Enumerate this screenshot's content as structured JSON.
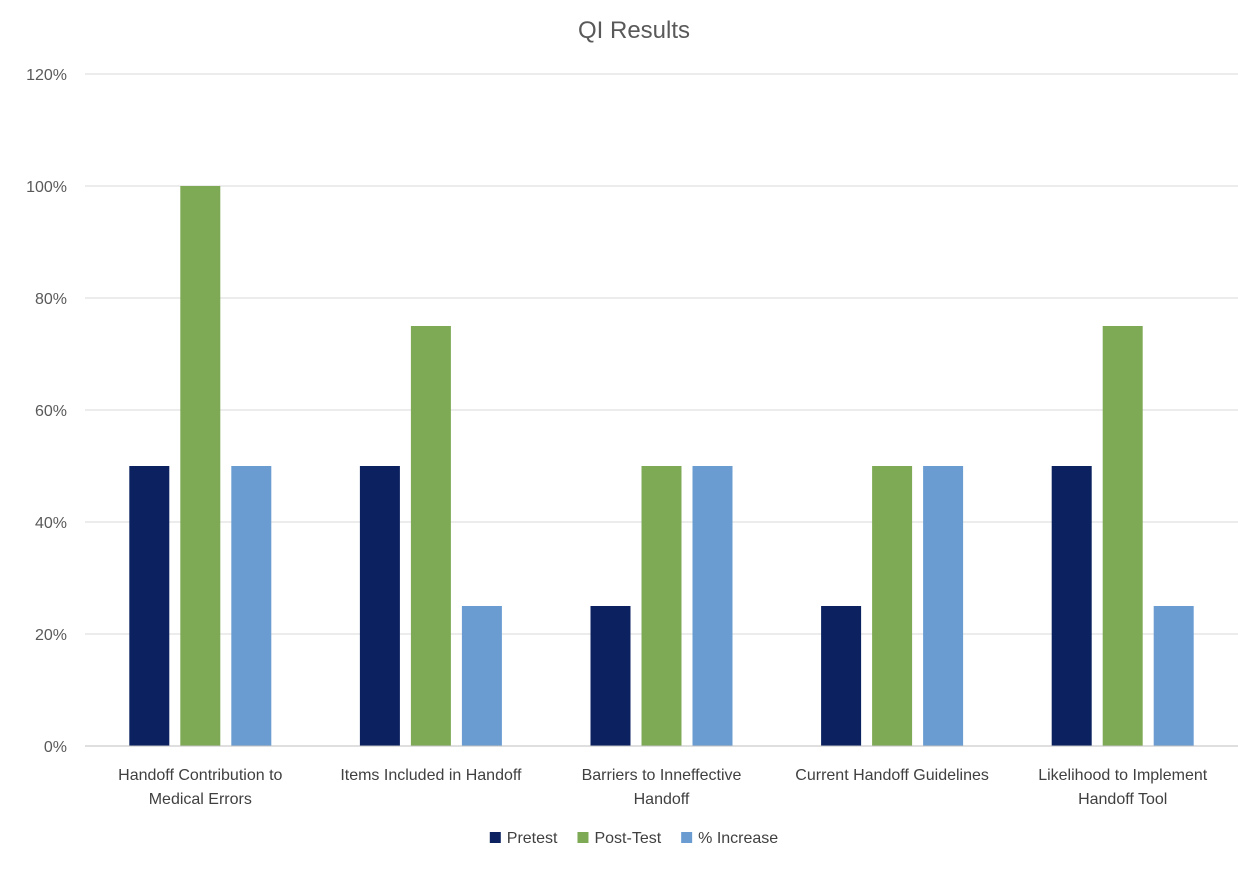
{
  "chart_data": {
    "type": "bar",
    "title": "QI Results",
    "xlabel": "",
    "ylabel": "",
    "ylim": [
      0,
      120
    ],
    "yticks": [
      0,
      20,
      40,
      60,
      80,
      100,
      120
    ],
    "ytick_labels": [
      "0%",
      "20%",
      "40%",
      "60%",
      "80%",
      "100%",
      "120%"
    ],
    "grid": true,
    "legend_position": "bottom",
    "categories": [
      [
        "Handoff Contribution to",
        "Medical Errors"
      ],
      [
        "Items Included in Handoff"
      ],
      [
        "Barriers to Inneffective",
        "Handoff"
      ],
      [
        "Current Handoff Guidelines"
      ],
      [
        "Likelihood to Implement",
        "Handoff Tool"
      ]
    ],
    "series": [
      {
        "name": "Pretest",
        "color": "#0b2160",
        "values": [
          50,
          50,
          25,
          25,
          50
        ]
      },
      {
        "name": "Post-Test",
        "color": "#7faa55",
        "values": [
          100,
          75,
          50,
          50,
          75
        ]
      },
      {
        "name": "% Increase",
        "color": "#6a9cd2",
        "values": [
          50,
          25,
          50,
          50,
          25
        ]
      }
    ]
  }
}
